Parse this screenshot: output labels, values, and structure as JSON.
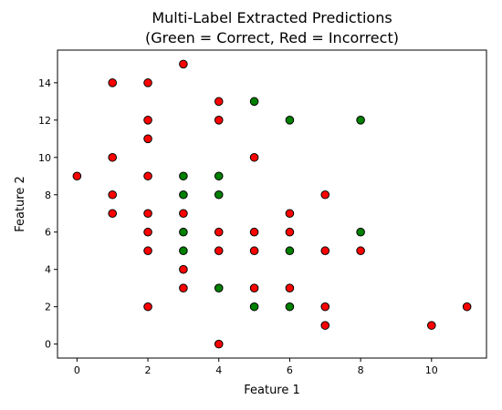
{
  "chart_data": {
    "type": "scatter",
    "title_line1": "Multi-Label Extracted Predictions",
    "title_line2": "(Green = Correct, Red = Incorrect)",
    "xlabel": "Feature 1",
    "ylabel": "Feature 2",
    "xlim": [
      -0.55,
      11.55
    ],
    "ylim": [
      -0.75,
      15.75
    ],
    "x_ticks": [
      0,
      2,
      4,
      6,
      8,
      10
    ],
    "y_ticks": [
      0,
      2,
      4,
      6,
      8,
      10,
      12,
      14
    ],
    "grid": false,
    "colors": {
      "correct": "#008000",
      "incorrect": "#ff0000",
      "edge": "#000000"
    },
    "series": [
      {
        "status": "correct",
        "points": [
          [
            3,
            9
          ],
          [
            4,
            9
          ],
          [
            3,
            8
          ],
          [
            4,
            8
          ],
          [
            3,
            6
          ],
          [
            8,
            6
          ],
          [
            3,
            5
          ],
          [
            6,
            5
          ],
          [
            4,
            3
          ],
          [
            5,
            2
          ],
          [
            6,
            2
          ],
          [
            5,
            13
          ],
          [
            6,
            12
          ],
          [
            8,
            12
          ]
        ]
      },
      {
        "status": "incorrect",
        "points": [
          [
            3,
            15
          ],
          [
            1,
            14
          ],
          [
            2,
            14
          ],
          [
            4,
            13
          ],
          [
            2,
            12
          ],
          [
            4,
            12
          ],
          [
            2,
            11
          ],
          [
            1,
            10
          ],
          [
            5,
            10
          ],
          [
            0,
            9
          ],
          [
            2,
            9
          ],
          [
            1,
            8
          ],
          [
            7,
            8
          ],
          [
            1,
            7
          ],
          [
            2,
            7
          ],
          [
            3,
            7
          ],
          [
            6,
            7
          ],
          [
            2,
            6
          ],
          [
            4,
            6
          ],
          [
            5,
            6
          ],
          [
            6,
            6
          ],
          [
            2,
            5
          ],
          [
            4,
            5
          ],
          [
            5,
            5
          ],
          [
            7,
            5
          ],
          [
            8,
            5
          ],
          [
            3,
            4
          ],
          [
            3,
            3
          ],
          [
            5,
            3
          ],
          [
            6,
            3
          ],
          [
            2,
            2
          ],
          [
            7,
            2
          ],
          [
            11,
            2
          ],
          [
            7,
            1
          ],
          [
            10,
            1
          ],
          [
            4,
            0
          ]
        ]
      }
    ]
  }
}
